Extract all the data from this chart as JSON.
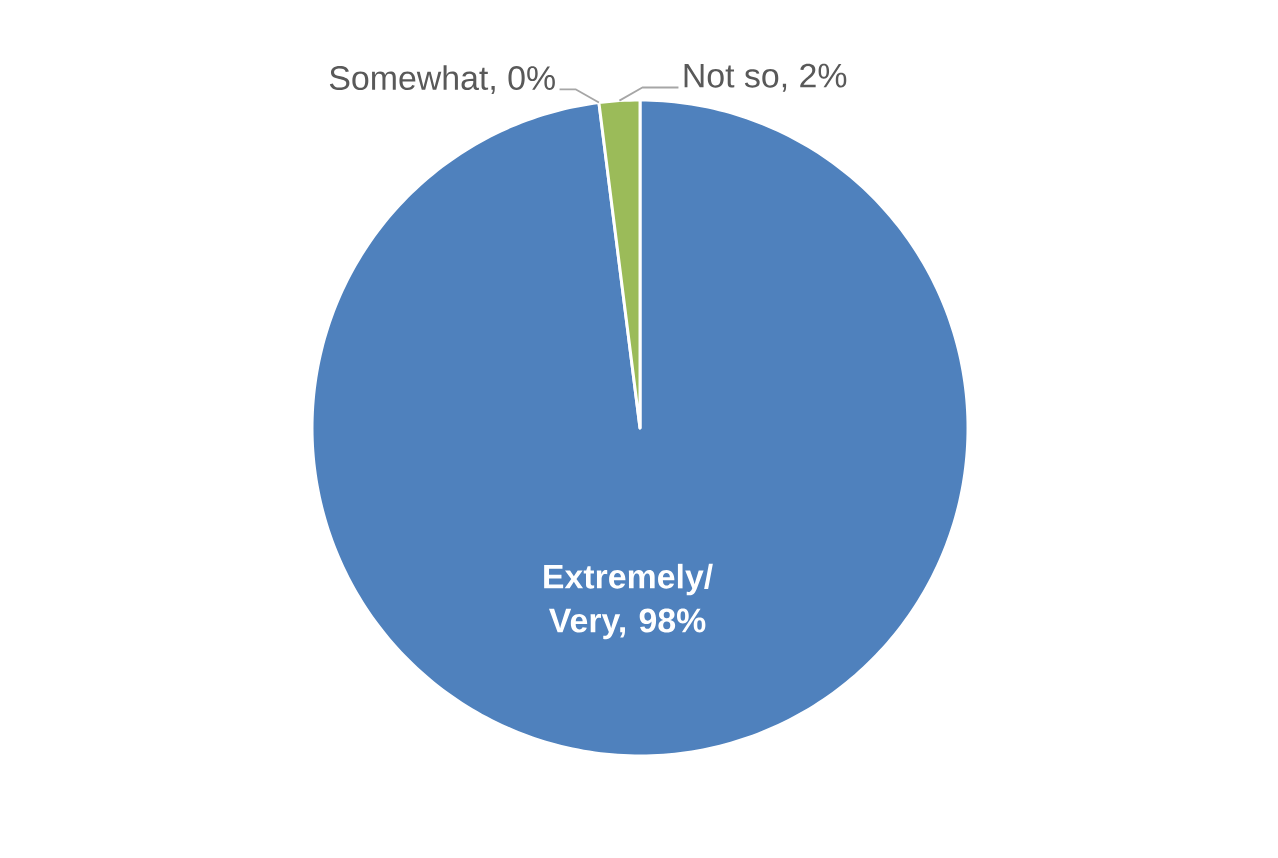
{
  "chart_data": {
    "type": "pie",
    "categories": [
      null,
      null,
      null
    ],
    "values": [
      98,
      0,
      2
    ],
    "colors": [
      "#4f81bd",
      "#c0504d",
      "#9bbb59"
    ],
    "value_labels": [
      "Extremely/ Very, 98%",
      "Somewhat, 0%",
      "Not so, 2%"
    ]
  }
}
